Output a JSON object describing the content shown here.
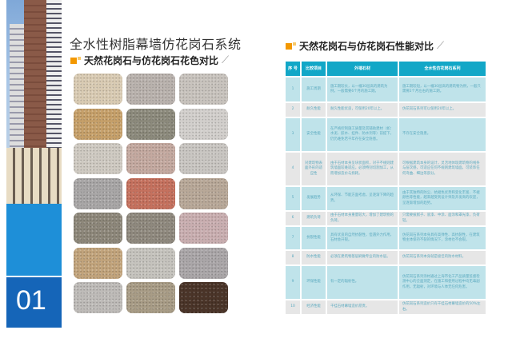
{
  "left": {
    "page_number": "01",
    "title": "全水性树脂幕墙仿花岗石系统",
    "subtitle": "天然花岗石与仿花岗石花色对比",
    "swatch_colors": [
      "#d9cbb3",
      "#b9b2ad",
      "#c8c3bd",
      "#c6a06a",
      "#8c8a7c",
      "#d2cfcc",
      "#cfcac2",
      "#c4a9a0",
      "#c9c6c2",
      "#a8a6a6",
      "#c5715e",
      "#b8a898",
      "#8d877a",
      "#8f897e",
      "#c9aeb0",
      "#c2a47c",
      "#c5c3bd",
      "#aaa6a8",
      "#bebbb8",
      "#a89c86",
      "#4a3428"
    ]
  },
  "right": {
    "subtitle": "天然花岗石与仿花岗石性能对比",
    "table": {
      "headers": [
        "序 号",
        "比较项目",
        "外墙石材",
        "全水性仿花岗石系列"
      ],
      "rows": [
        [
          "1",
          "施工周期",
          "施工期较长，以一幢30层高的建筑为例，一般需要6个月的施工期。",
          "施工期较短，以一幢30层高的建筑物为例，一般只需要2个月左右的施工期。"
        ],
        [
          "2",
          "耐久性能",
          "耐久性能优良，可保用20年以上。",
          "仿花岗石系列可以保用20年以上。"
        ],
        [
          "3",
          "安全性能",
          "在严格控制施工质量及其辅助建材（如：水泥、胶水、挂件、防水剂等）前提下，仍仍难免若干年存在安全隐患。",
          "不存在安全隐患。"
        ],
        [
          "4",
          "对建筑物表面外形的适应性",
          "由于石材本身呈块状面积，对于不规则建筑墙面较难适应，必须特别切割加工，从而增加造价与损耗。",
          "可根据建筑本身的设计，灵活地体现建筑物的线条与层次感，可适应任何不规则建筑墙面，可装饰任何弯曲、细边等部分。"
        ],
        [
          "5",
          "发展趋势",
          "从环保、节能方面考虑，呈逐渐下降的趋势。",
          "由于其独特的防尘、抗褪色优势和变化丰富、不褪颜色等性能，越来越受到设计师及开发商的欢迎，呈逐渐增加的趋势。"
        ],
        [
          "6",
          "建筑负荷",
          "由于石材本身重量较大，增加了建筑物的负荷。",
          "只需要披腻子、底漆、中涂、面涂和罩光漆，负荷轻。"
        ],
        [
          "7",
          "抗裂性能",
          "具有优良的自然抗裂性，但遇外力作用，石材会开裂。",
          "仿花岗石系列本身具有高弹性、高抗裂性，在建筑物主体保持不裂的情况下，涂材也不会裂。"
        ],
        [
          "8",
          "防水性能",
          "必须在建筑物基层刷做专业的防水层。",
          "仿花岗石系列本身就是极佳的防水材料。"
        ],
        [
          "9",
          "环保性能",
          "有一定的辐射性。",
          "仿花岗石系列涂材通过上海市化工产品质量监督检测中心的全面测定，在施工和使用过程中均无毒副作用，无辐射，对环境与人体无任何危害。"
        ],
        [
          "10",
          "经济性能",
          "干挂石材幕墙造价昂贵。",
          "仿花岗石系列造价只有干挂石材幕墙造价的50%左右。"
        ]
      ]
    }
  }
}
